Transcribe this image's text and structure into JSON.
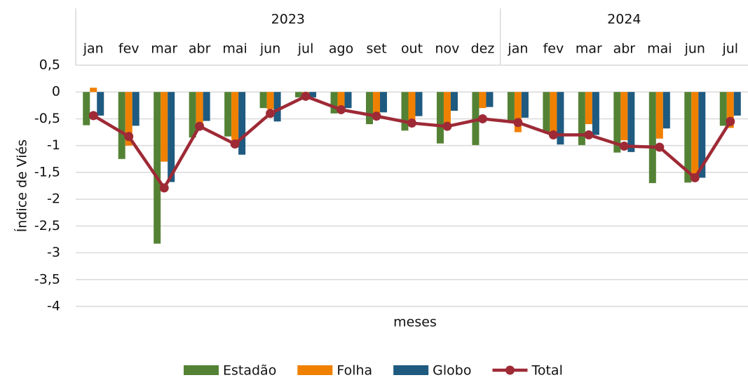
{
  "chart_data": {
    "type": "bar",
    "y_label": "Índice de Viés",
    "x_label": "meses",
    "category_groups": [
      {
        "name": "2023",
        "categories": [
          "jan",
          "fev",
          "mar",
          "abr",
          "mai",
          "jun",
          "jul",
          "ago",
          "set",
          "out",
          "nov",
          "dez"
        ]
      },
      {
        "name": "2024",
        "categories": [
          "jan",
          "fev",
          "mar",
          "abr",
          "mai",
          "jun",
          "jul"
        ]
      }
    ],
    "series": [
      {
        "name": "Estadão",
        "color": "#548235",
        "values": [
          -0.62,
          -1.25,
          -2.83,
          -0.85,
          -0.83,
          -0.3,
          -0.1,
          -0.4,
          -0.6,
          -0.72,
          -0.96,
          -0.99,
          -0.57,
          -0.75,
          -0.99,
          -1.13,
          -1.7,
          -1.69,
          -0.63
        ]
      },
      {
        "name": "Folha",
        "color": "#f08000",
        "values": [
          0.08,
          -1.0,
          -1.3,
          -0.6,
          -0.9,
          -0.32,
          -0.1,
          -0.35,
          -0.4,
          -0.55,
          -0.58,
          -0.3,
          -0.75,
          -0.82,
          -0.6,
          -0.9,
          -0.87,
          -1.6,
          -0.67
        ]
      },
      {
        "name": "Globo",
        "color": "#1f5a80",
        "values": [
          -0.44,
          -0.63,
          -1.68,
          -0.54,
          -1.17,
          -0.55,
          -0.1,
          -0.3,
          -0.38,
          -0.45,
          -0.35,
          -0.28,
          -0.48,
          -0.98,
          -0.8,
          -1.12,
          -0.68,
          -1.6,
          -0.44
        ]
      },
      {
        "name": "Total",
        "type": "line",
        "color": "#9e2a36",
        "values": [
          -0.44,
          -0.83,
          -1.79,
          -0.64,
          -0.97,
          -0.4,
          -0.08,
          -0.33,
          -0.45,
          -0.58,
          -0.64,
          -0.5,
          -0.57,
          -0.8,
          -0.8,
          -1.01,
          -1.03,
          -1.6,
          -0.55
        ]
      }
    ],
    "ylim": [
      -4,
      0.5
    ],
    "yticks": [
      -4,
      {
        "value": -3.5,
        "label": "-3,5"
      },
      -3,
      {
        "value": -2.5,
        "label": "-2,5"
      },
      -2,
      {
        "value": -1.5,
        "label": "-1,5"
      },
      -1,
      {
        "value": -0.5,
        "label": "-0,5"
      },
      0,
      {
        "value": 0.5,
        "label": "0,5"
      }
    ],
    "grid": true
  }
}
